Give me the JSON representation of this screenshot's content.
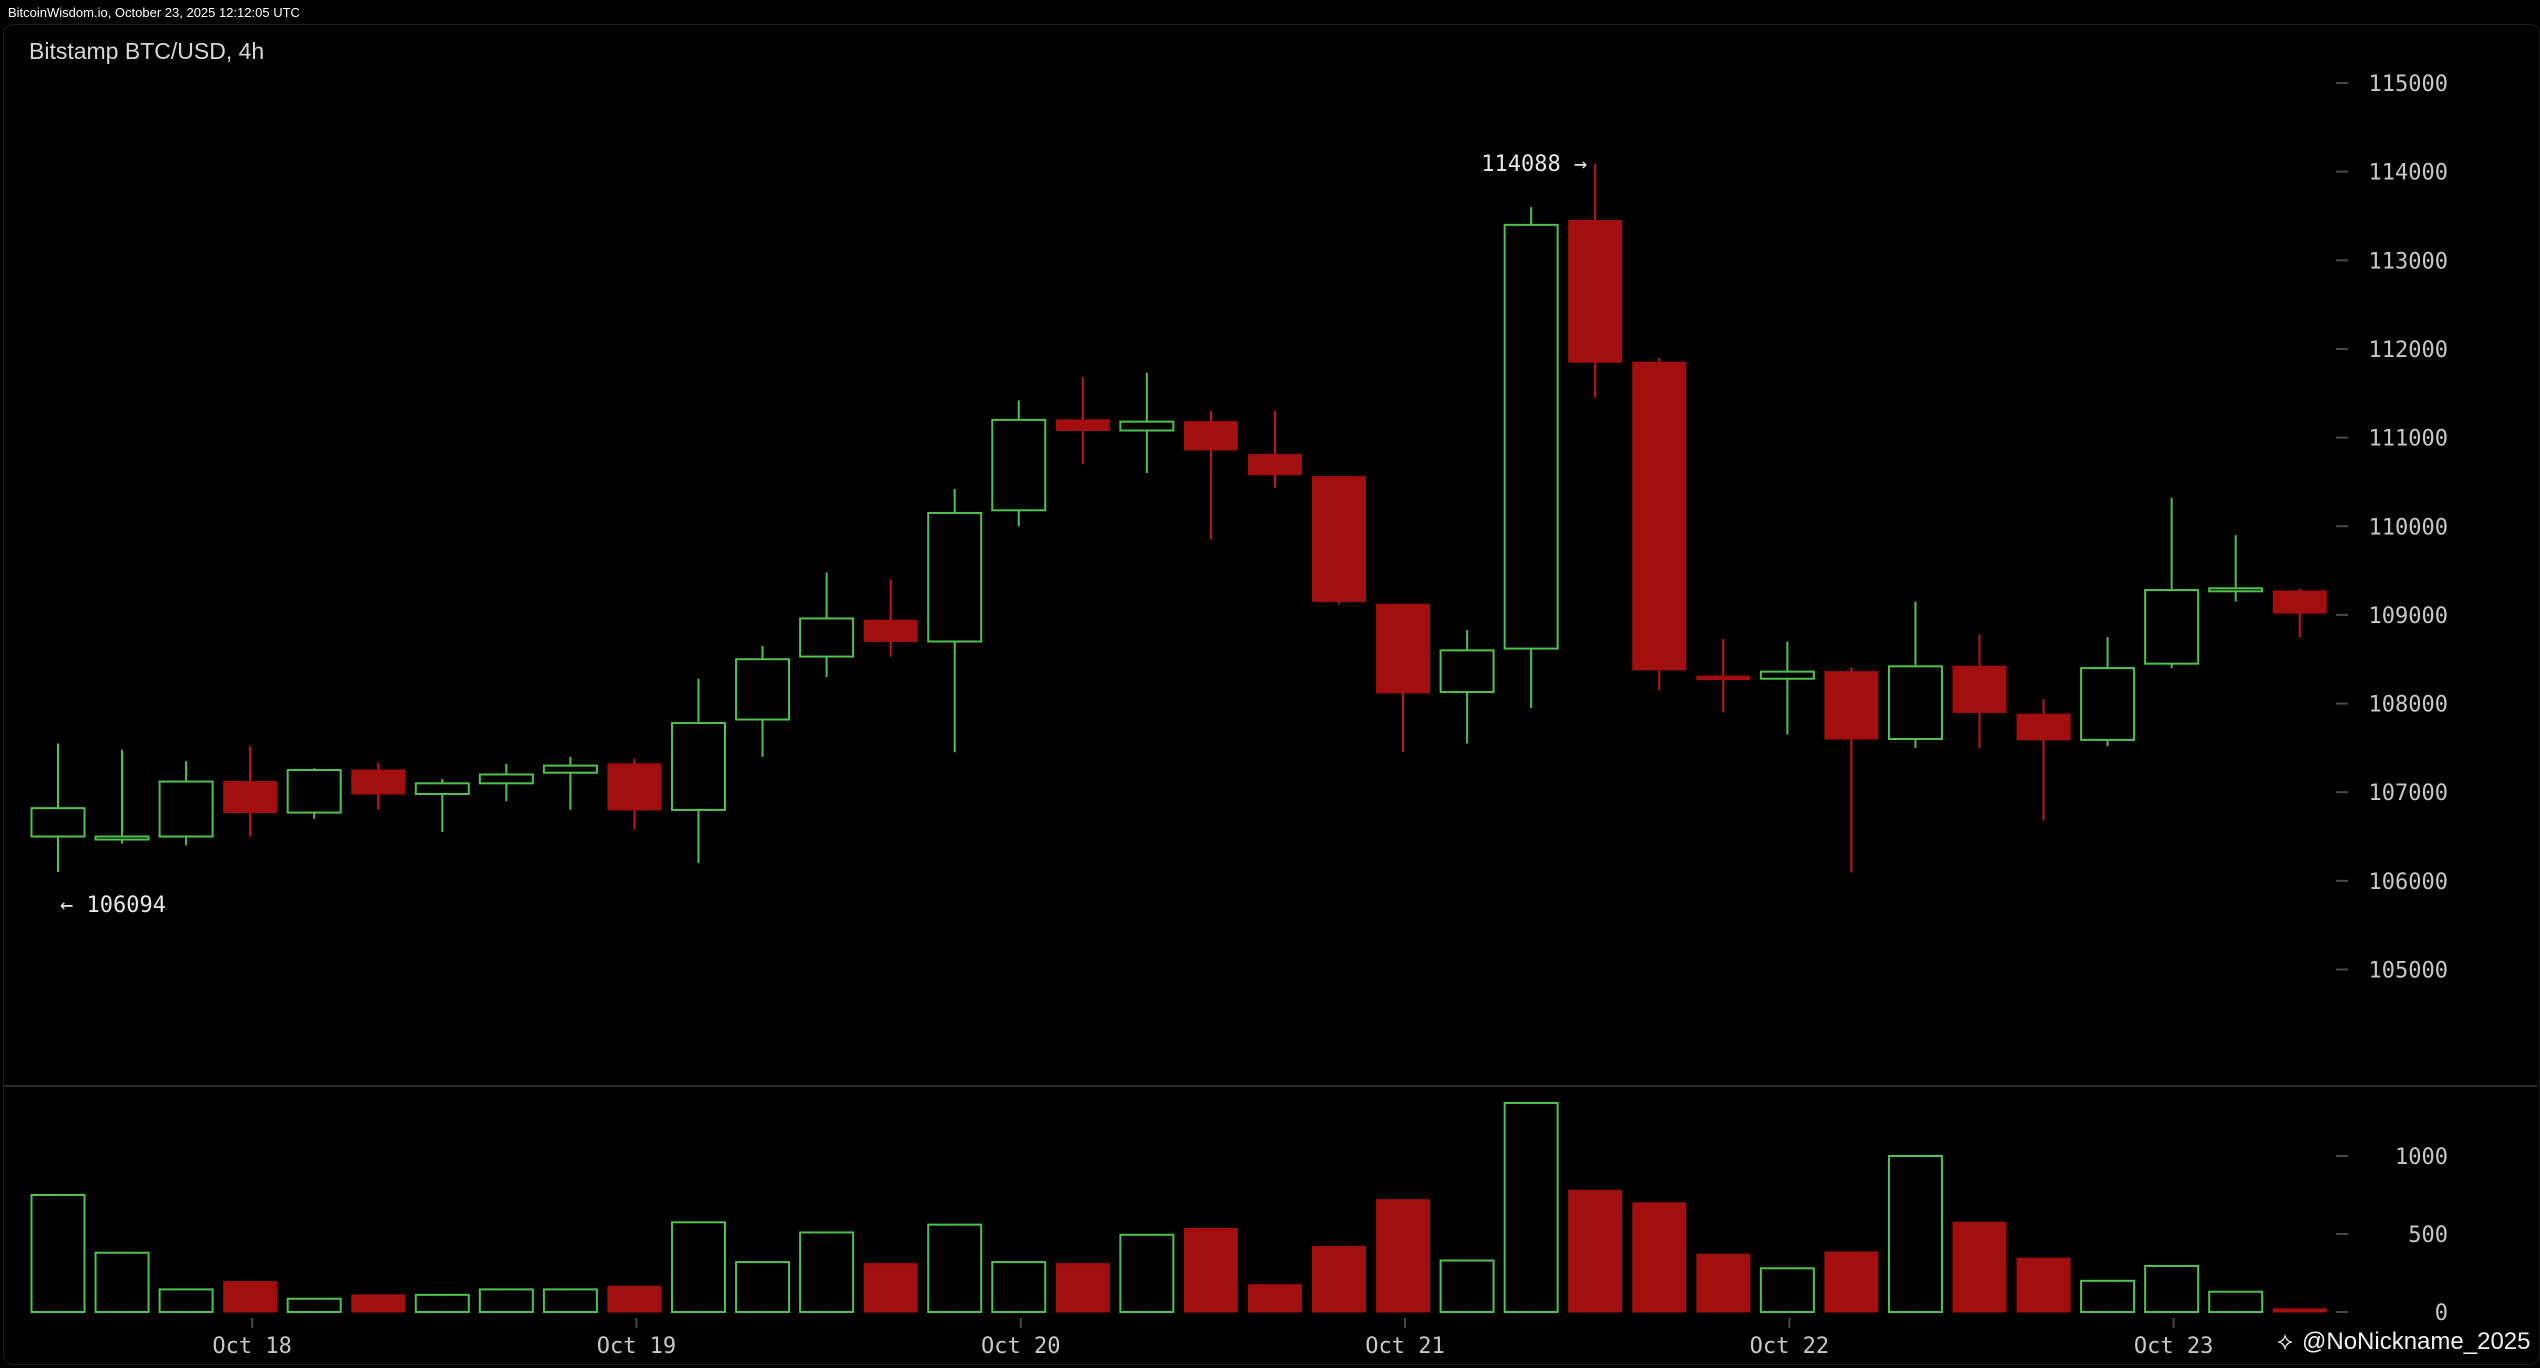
{
  "header": {
    "text": "BitcoinWisdom.io, October 23, 2025 12:12:05 UTC"
  },
  "chart": {
    "title": "Bitstamp BTC/USD, 4h"
  },
  "watermark": {
    "text": "@NoNickname_2025",
    "icon": "binance-square-icon"
  },
  "colors": {
    "up": "#4fc24f",
    "down": "#a30e0e",
    "down_wick": "#c01818",
    "axis_text": "#c8c8c8",
    "background": "#000000"
  },
  "chart_data": [
    {
      "type": "candlestick",
      "title": "Bitstamp BTC/USD, 4h",
      "x_labels": [
        "Oct 18",
        "Oct 19",
        "Oct 20",
        "Oct 21",
        "Oct 22",
        "Oct 23"
      ],
      "x_label_at_candle": [
        3,
        9,
        15,
        21,
        27,
        33
      ],
      "y_ticks": [
        "115000",
        "114000",
        "113000",
        "112000",
        "111000",
        "110000",
        "109000",
        "108000",
        "107000",
        "106000",
        "105000"
      ],
      "ylim": [
        104000,
        115400
      ],
      "annotations": {
        "high": "114088 →",
        "low": "← 106094"
      },
      "candles": [
        {
          "o": 106500,
          "h": 107550,
          "l": 106100,
          "c": 106820
        },
        {
          "o": 106480,
          "h": 107480,
          "l": 106420,
          "c": 106500
        },
        {
          "o": 106500,
          "h": 107350,
          "l": 106400,
          "c": 107120
        },
        {
          "o": 107120,
          "h": 107520,
          "l": 106500,
          "c": 106770
        },
        {
          "o": 106770,
          "h": 107270,
          "l": 106700,
          "c": 107250
        },
        {
          "o": 107250,
          "h": 107330,
          "l": 106800,
          "c": 106980
        },
        {
          "o": 106980,
          "h": 107150,
          "l": 106550,
          "c": 107100
        },
        {
          "o": 107100,
          "h": 107320,
          "l": 106900,
          "c": 107200
        },
        {
          "o": 107220,
          "h": 107400,
          "l": 106800,
          "c": 107300
        },
        {
          "o": 107320,
          "h": 107380,
          "l": 106580,
          "c": 106800
        },
        {
          "o": 106800,
          "h": 108280,
          "l": 106200,
          "c": 107780
        },
        {
          "o": 107820,
          "h": 108650,
          "l": 107400,
          "c": 108500
        },
        {
          "o": 108530,
          "h": 109480,
          "l": 108300,
          "c": 108960
        },
        {
          "o": 108940,
          "h": 109400,
          "l": 108530,
          "c": 108700
        },
        {
          "o": 108700,
          "h": 110420,
          "l": 107450,
          "c": 110150
        },
        {
          "o": 110180,
          "h": 111420,
          "l": 110000,
          "c": 111200
        },
        {
          "o": 111200,
          "h": 111680,
          "l": 110700,
          "c": 111080
        },
        {
          "o": 111080,
          "h": 111730,
          "l": 110600,
          "c": 111180
        },
        {
          "o": 111180,
          "h": 111300,
          "l": 109850,
          "c": 110860
        },
        {
          "o": 110810,
          "h": 111300,
          "l": 110430,
          "c": 110580
        },
        {
          "o": 110560,
          "h": 110560,
          "l": 109120,
          "c": 109150
        },
        {
          "o": 109120,
          "h": 109120,
          "l": 107450,
          "c": 108120
        },
        {
          "o": 108130,
          "h": 108830,
          "l": 107550,
          "c": 108600
        },
        {
          "o": 108620,
          "h": 113600,
          "l": 107950,
          "c": 113400
        },
        {
          "o": 113450,
          "h": 114088,
          "l": 111450,
          "c": 111850
        },
        {
          "o": 111850,
          "h": 111900,
          "l": 108150,
          "c": 108380
        },
        {
          "o": 108310,
          "h": 108730,
          "l": 107900,
          "c": 108270
        },
        {
          "o": 108280,
          "h": 108700,
          "l": 107650,
          "c": 108360
        },
        {
          "o": 108360,
          "h": 108410,
          "l": 106094,
          "c": 107600
        },
        {
          "o": 107600,
          "h": 109150,
          "l": 107500,
          "c": 108420
        },
        {
          "o": 108420,
          "h": 108780,
          "l": 107500,
          "c": 107900
        },
        {
          "o": 107880,
          "h": 108050,
          "l": 106680,
          "c": 107590
        },
        {
          "o": 107590,
          "h": 108750,
          "l": 107520,
          "c": 108400
        },
        {
          "o": 108450,
          "h": 110320,
          "l": 108400,
          "c": 109280
        },
        {
          "o": 109300,
          "h": 109900,
          "l": 109150,
          "c": 109300
        },
        {
          "o": 109270,
          "h": 109300,
          "l": 108750,
          "c": 109020
        }
      ]
    },
    {
      "type": "bar",
      "title": "",
      "y_ticks": [
        "1000",
        "500",
        "0"
      ],
      "ylim": [
        0,
        1350
      ],
      "values": [
        750,
        380,
        145,
        195,
        85,
        110,
        110,
        145,
        145,
        165,
        575,
        320,
        510,
        310,
        560,
        320,
        310,
        495,
        535,
        175,
        420,
        720,
        330,
        1340,
        780,
        700,
        370,
        280,
        385,
        1000,
        575,
        345,
        200,
        295,
        130,
        20
      ]
    }
  ]
}
